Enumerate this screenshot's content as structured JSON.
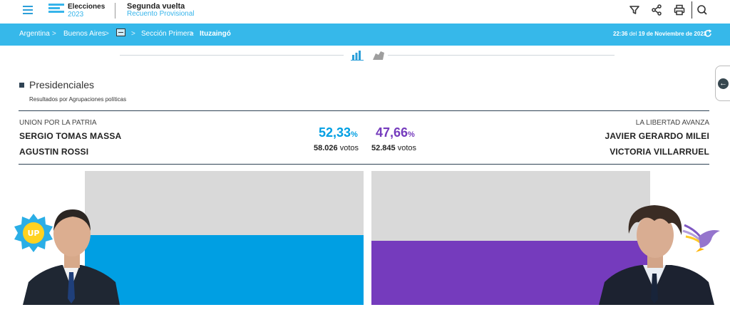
{
  "header": {
    "brand_line1": "Elecciones",
    "brand_line2": "2023",
    "title": "Segunda vuelta",
    "subtitle": "Recuento Provisional",
    "icons": [
      "menu-icon",
      "filter-icon",
      "share-icon",
      "print-icon",
      "search-icon"
    ]
  },
  "breadcrumb": {
    "items": [
      "Argentina",
      "Buenos Aires",
      "Sección Primera",
      "Ituzaingó"
    ],
    "separator": ">",
    "time": "22:36",
    "date_prefix": "del",
    "date": "19 de Noviembre de 2023"
  },
  "section": {
    "title": "Presidenciales",
    "subtitle": "Resultados por Agrupaciones políticas"
  },
  "candidates": [
    {
      "party": "UNION POR LA PATRIA",
      "president": "SERGIO TOMAS MASSA",
      "vice": "AGUSTIN ROSSI",
      "percent": "52,33",
      "percent_unit": "%",
      "votes": "58.026",
      "votes_label": "votos",
      "color": "#009fe3",
      "share": 0.5233,
      "badge_text": "UP"
    },
    {
      "party": "LA LIBERTAD AVANZA",
      "president": "JAVIER GERARDO MILEI",
      "vice": "VICTORIA VILLARRUEL",
      "percent": "47,66",
      "percent_unit": "%",
      "votes": "52.845",
      "votes_label": "votos",
      "color": "#753bbd",
      "share": 0.4766
    }
  ],
  "colors": {
    "accent": "#36b8ea",
    "dark": "#2f4354",
    "bar_background": "#d9d9d9"
  }
}
